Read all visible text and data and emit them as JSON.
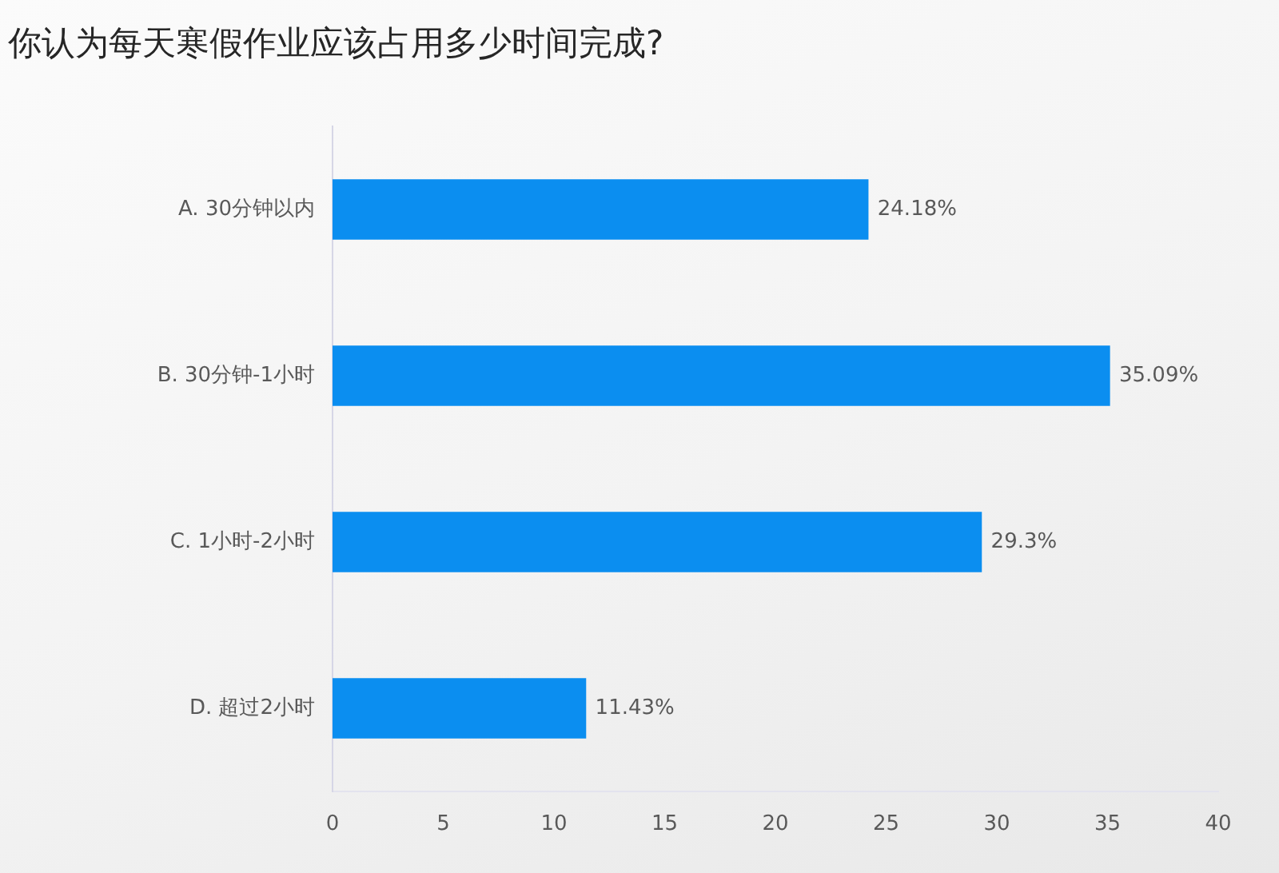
{
  "chart_data": {
    "type": "bar",
    "orientation": "horizontal",
    "title": "你认为每天寒假作业应该占用多少时间完成?",
    "categories": [
      "A. 30分钟以内",
      "B. 30分钟-1小时",
      "C. 1小时-2小时",
      "D. 超过2小时"
    ],
    "values": [
      24.18,
      35.09,
      29.3,
      11.43
    ],
    "value_labels": [
      "24.18%",
      "35.09%",
      "29.3%",
      "11.43%"
    ],
    "color": "#0b8ef0",
    "xlim": [
      0,
      40
    ],
    "xticks": [
      0,
      5,
      10,
      15,
      20,
      25,
      30,
      35,
      40
    ]
  }
}
